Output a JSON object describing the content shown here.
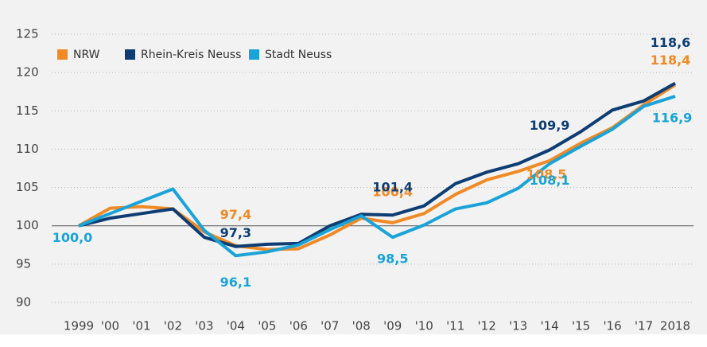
{
  "chart_data": {
    "type": "line",
    "categories": [
      "1999",
      "'00",
      "'01",
      "'02",
      "'03",
      "'04",
      "'05",
      "'06",
      "'07",
      "'08",
      "'09",
      "'10",
      "'11",
      "'12",
      "'13",
      "'14",
      "'15",
      "'16",
      "'17",
      "2018"
    ],
    "series": [
      {
        "name": "NRW",
        "color": "#f08a24",
        "values": [
          100,
          102.3,
          102.5,
          102.2,
          99.2,
          97.4,
          96.9,
          97.0,
          98.8,
          101.0,
          100.4,
          101.6,
          104.1,
          106.0,
          107.1,
          108.5,
          110.8,
          112.8,
          115.8,
          118.4
        ],
        "value_labels": [
          null,
          null,
          null,
          null,
          null,
          "97,4",
          null,
          null,
          null,
          null,
          "100,4",
          null,
          null,
          null,
          null,
          "108,5",
          null,
          null,
          null,
          "118,4"
        ]
      },
      {
        "name": "Rhein-Kreis Neuss",
        "color": "#0d3d73",
        "values": [
          100,
          101.0,
          101.6,
          102.2,
          98.5,
          97.3,
          97.6,
          97.7,
          100.0,
          101.5,
          101.4,
          102.6,
          105.5,
          107.0,
          108.1,
          109.9,
          112.3,
          115.1,
          116.3,
          118.6
        ],
        "value_labels": [
          null,
          null,
          null,
          null,
          null,
          "97,3",
          null,
          null,
          null,
          null,
          "101,4",
          null,
          null,
          null,
          null,
          "109,9",
          null,
          null,
          null,
          "118,6"
        ]
      },
      {
        "name": "Stadt Neuss",
        "color": "#1aa3d8",
        "values": [
          100,
          101.6,
          103.2,
          104.8,
          99.4,
          96.1,
          96.6,
          97.5,
          99.5,
          101.3,
          98.5,
          100.1,
          102.2,
          103.0,
          104.9,
          108.1,
          110.4,
          112.6,
          115.6,
          116.9
        ],
        "value_labels": [
          "100,0",
          null,
          null,
          null,
          null,
          "96,1",
          null,
          null,
          null,
          null,
          "98,5",
          null,
          null,
          null,
          null,
          "108,1",
          null,
          null,
          null,
          "116,9"
        ]
      }
    ],
    "ylim": [
      90,
      125
    ],
    "yticks": [
      90,
      95,
      100,
      105,
      110,
      115,
      120,
      125
    ],
    "grid": true,
    "legend": "top-left"
  }
}
